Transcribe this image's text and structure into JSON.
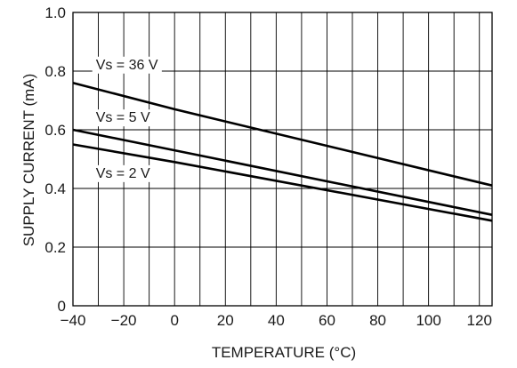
{
  "chart_data": {
    "type": "line",
    "title": "",
    "xlabel": "TEMPERATURE (°C)",
    "ylabel": "SUPPLY CURRENT (mA)",
    "xlim": [
      -40,
      125
    ],
    "ylim": [
      0,
      1.0
    ],
    "x_ticks": [
      -40,
      -20,
      0,
      20,
      40,
      60,
      80,
      100,
      120
    ],
    "x_tick_labels": [
      "−40",
      "−20",
      "0",
      "20",
      "40",
      "60",
      "80",
      "100",
      "120"
    ],
    "y_ticks": [
      0,
      0.2,
      0.4,
      0.6,
      0.8,
      1.0
    ],
    "y_tick_labels": [
      "0",
      "0.2",
      "0.4",
      "0.6",
      "0.8",
      "1.0"
    ],
    "x_minor_grid_step": 10,
    "grid": true,
    "legend": "inline labels",
    "series": [
      {
        "name": "Vs = 36 V",
        "x": [
          -40,
          0,
          125
        ],
        "values": [
          0.76,
          0.67,
          0.41
        ]
      },
      {
        "name": "Vs = 5 V",
        "x": [
          -40,
          0,
          125
        ],
        "values": [
          0.6,
          0.53,
          0.31
        ]
      },
      {
        "name": "Vs = 2 V",
        "x": [
          -40,
          0,
          125
        ],
        "values": [
          0.55,
          0.49,
          0.29
        ]
      }
    ]
  }
}
